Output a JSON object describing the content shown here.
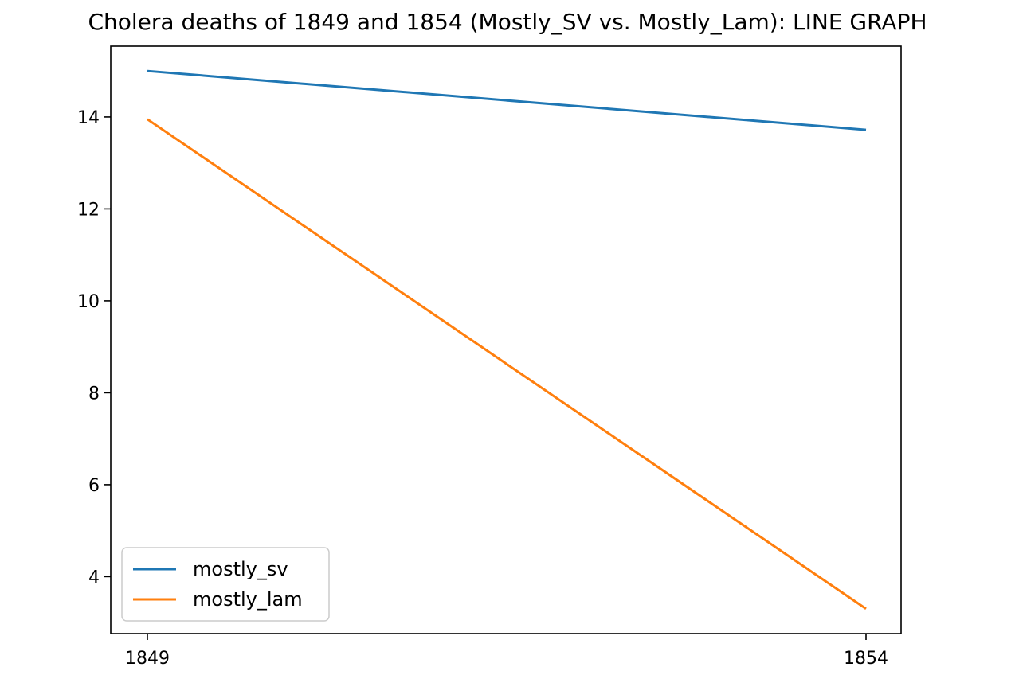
{
  "chart_data": {
    "type": "line",
    "title": "Cholera deaths of 1849 and 1854 (Mostly_SV vs. Mostly_Lam): LINE GRAPH",
    "xlabel": "",
    "ylabel": "",
    "categories": [
      "1849",
      "1854"
    ],
    "series": [
      {
        "name": "mostly_sv",
        "values": [
          15.0,
          13.72
        ],
        "color": "#1f77b4"
      },
      {
        "name": "mostly_lam",
        "values": [
          13.95,
          3.3
        ],
        "color": "#ff7f0e"
      }
    ],
    "ylim": [
      2.76,
      15.54
    ],
    "yticks": [
      "4",
      "6",
      "8",
      "10",
      "12",
      "14"
    ],
    "grid": false,
    "legend_position": "lower-left"
  }
}
